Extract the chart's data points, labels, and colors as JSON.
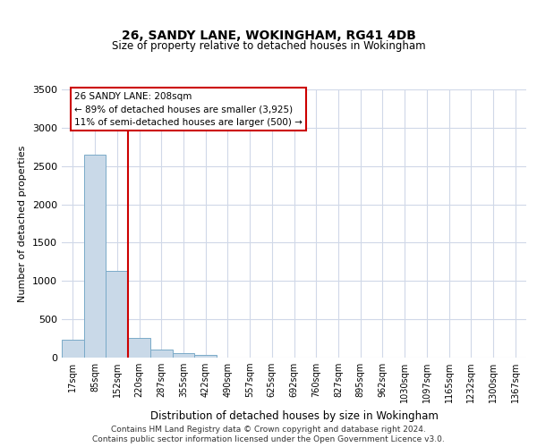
{
  "title_line1": "26, SANDY LANE, WOKINGHAM, RG41 4DB",
  "title_line2": "Size of property relative to detached houses in Wokingham",
  "xlabel": "Distribution of detached houses by size in Wokingham",
  "ylabel": "Number of detached properties",
  "bar_labels": [
    "17sqm",
    "85sqm",
    "152sqm",
    "220sqm",
    "287sqm",
    "355sqm",
    "422sqm",
    "490sqm",
    "557sqm",
    "625sqm",
    "692sqm",
    "760sqm",
    "827sqm",
    "895sqm",
    "962sqm",
    "1030sqm",
    "1097sqm",
    "1165sqm",
    "1232sqm",
    "1300sqm",
    "1367sqm"
  ],
  "bar_values": [
    230,
    2650,
    1130,
    260,
    100,
    55,
    40,
    0,
    0,
    0,
    0,
    0,
    0,
    0,
    0,
    0,
    0,
    0,
    0,
    0,
    0
  ],
  "bar_color": "#c9d9e8",
  "bar_edge_color": "#7aaac8",
  "grid_color": "#d0d8e8",
  "annotation_text": "26 SANDY LANE: 208sqm\n← 89% of detached houses are smaller (3,925)\n11% of semi-detached houses are larger (500) →",
  "vline_x": 2.5,
  "vline_color": "#cc0000",
  "annotation_box_color": "#cc0000",
  "ylim": [
    0,
    3500
  ],
  "yticks": [
    0,
    500,
    1000,
    1500,
    2000,
    2500,
    3000,
    3500
  ],
  "footnote1": "Contains HM Land Registry data © Crown copyright and database right 2024.",
  "footnote2": "Contains public sector information licensed under the Open Government Licence v3.0."
}
